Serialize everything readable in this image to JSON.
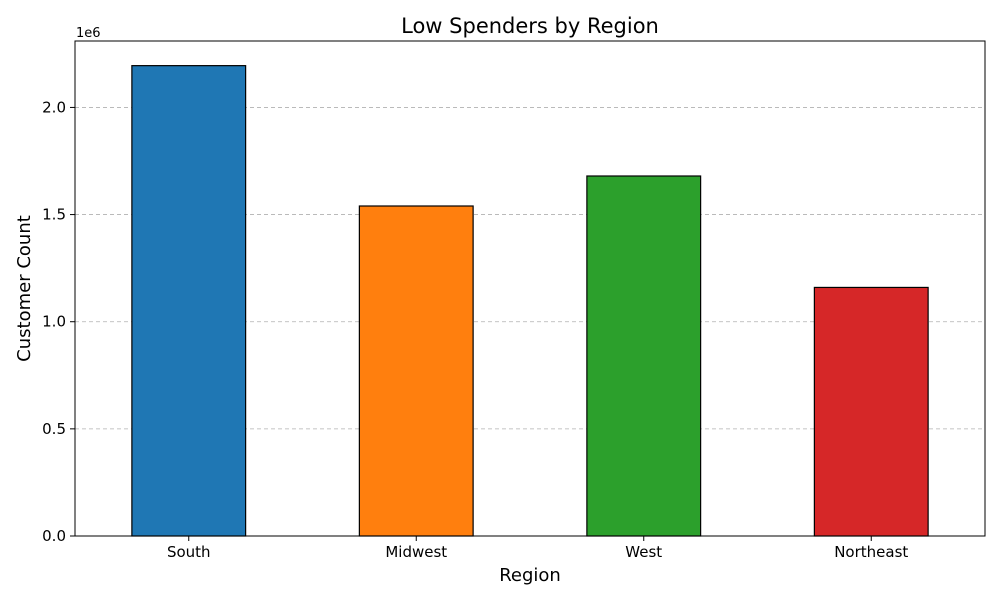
{
  "chart_data": {
    "type": "bar",
    "title": "Low Spenders by Region",
    "xlabel": "Region",
    "ylabel": "Customer Count",
    "y_offset_label": "1e6",
    "categories": [
      "South",
      "Midwest",
      "West",
      "Northeast"
    ],
    "values": [
      2195000,
      1540000,
      1680000,
      1160000
    ],
    "colors": [
      "#1f77b4",
      "#ff7f0e",
      "#2ca02c",
      "#d62728"
    ],
    "edge_color": "#000000",
    "ylim": [
      0,
      2310000
    ],
    "yticks": [
      0,
      500000,
      1000000,
      1500000,
      2000000
    ],
    "ytick_labels": [
      "0.0",
      "0.5",
      "1.0",
      "1.5",
      "2.0"
    ],
    "grid": "y-dashed",
    "legend": "none"
  }
}
